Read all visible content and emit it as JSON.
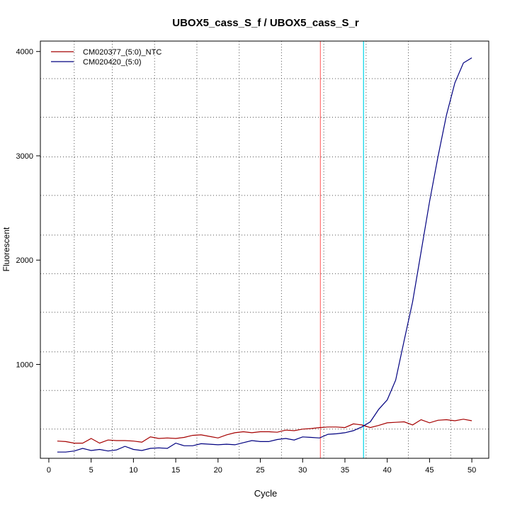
{
  "chart_data": {
    "type": "line",
    "title": "UBOX5_cass_S_f / UBOX5_cass_S_r",
    "xlabel": "Cycle",
    "ylabel": "Fluorescent",
    "xlim": [
      -1,
      52
    ],
    "ylim": [
      100,
      4100
    ],
    "x_ticks": [
      0,
      5,
      10,
      15,
      20,
      25,
      30,
      35,
      40,
      45,
      50
    ],
    "y_ticks": [
      1000,
      2000,
      3000,
      4000
    ],
    "grid": true,
    "legend_position": "top-left",
    "vertical_grid_x": [
      3,
      7.5,
      12.5,
      17.5,
      22.5,
      27.5,
      32.5,
      37.5,
      42.5,
      47.5
    ],
    "horizontal_grid_y": [
      380,
      750,
      1120,
      1500,
      1870,
      2240,
      2620,
      2990,
      3370,
      3740
    ],
    "threshold_lines": [
      {
        "x": 32.1,
        "color": "#ff6f6f"
      },
      {
        "x": 37.2,
        "color": "#00d4e8"
      }
    ],
    "x": [
      1,
      2,
      3,
      4,
      5,
      6,
      7,
      8,
      9,
      10,
      11,
      12,
      13,
      14,
      15,
      16,
      17,
      18,
      19,
      20,
      21,
      22,
      23,
      24,
      25,
      26,
      27,
      28,
      29,
      30,
      31,
      32,
      33,
      34,
      35,
      36,
      37,
      38,
      39,
      40,
      41,
      42,
      43,
      44,
      45,
      46,
      47,
      48,
      49,
      50
    ],
    "series": [
      {
        "name": "CM020377_(5:0)_NTC",
        "color": "#a50000",
        "values": [
          265,
          260,
          245,
          245,
          290,
          245,
          275,
          270,
          270,
          265,
          255,
          305,
          290,
          295,
          290,
          300,
          320,
          325,
          310,
          295,
          325,
          345,
          355,
          345,
          355,
          355,
          350,
          370,
          365,
          380,
          385,
          395,
          400,
          400,
          395,
          430,
          420,
          395,
          415,
          440,
          445,
          450,
          420,
          470,
          440,
          465,
          470,
          460,
          475,
          460
        ]
      },
      {
        "name": "CM020420_(5:0)",
        "color": "#000080",
        "values": [
          160,
          160,
          170,
          195,
          175,
          185,
          170,
          180,
          215,
          185,
          175,
          195,
          200,
          195,
          245,
          220,
          220,
          240,
          235,
          230,
          235,
          230,
          250,
          270,
          260,
          260,
          280,
          290,
          275,
          305,
          300,
          295,
          330,
          335,
          345,
          365,
          400,
          450,
          570,
          660,
          850,
          1230,
          1600,
          2080,
          2560,
          2990,
          3390,
          3700,
          3890,
          3940
        ]
      }
    ]
  }
}
